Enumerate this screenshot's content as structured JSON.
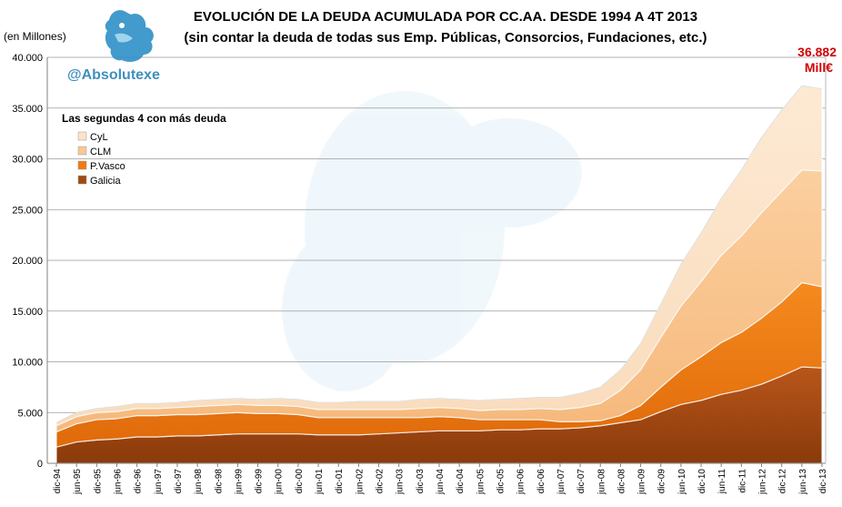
{
  "chart_data": {
    "type": "area",
    "stacked": true,
    "title": "EVOLUCIÓN DE LA DEUDA ACUMULADA POR CC.AA. DESDE 1994 A 4T 2013",
    "subtitle": "(sin contar la deuda de todas sus Emp. Públicas, Consorcios, Fundaciones, etc.)",
    "unit_label": "(en Millones)",
    "handle": "@Absolutexe",
    "legend_title": "Las segundas 4 con más deuda",
    "legend_placement": "top-left",
    "annotation": {
      "value": "36.882",
      "unit": "Mill€"
    },
    "ylim": [
      0,
      40000
    ],
    "y_ticks": [
      "0",
      "5.000",
      "10.000",
      "15.000",
      "20.000",
      "25.000",
      "30.000",
      "35.000",
      "40.000"
    ],
    "grid": true,
    "x_labels": [
      "dic-94",
      "jun-95",
      "dic-95",
      "jun-96",
      "dic-96",
      "jun-97",
      "dic-97",
      "jun-98",
      "dic-98",
      "jun-99",
      "dic-99",
      "jun-00",
      "dic-00",
      "jun-01",
      "dic-01",
      "jun-02",
      "dic-02",
      "jun-03",
      "dic-03",
      "jun-04",
      "dic-04",
      "jun-05",
      "dic-05",
      "jun-06",
      "dic-06",
      "jun-07",
      "dic-07",
      "jun-08",
      "dic-08",
      "jun-09",
      "dic-09",
      "jun-10",
      "dic-10",
      "jun-11",
      "dic-11",
      "jun-12",
      "dic-12",
      "jun-13",
      "dic-13"
    ],
    "series": [
      {
        "name": "Galicia",
        "color": "#a24a12",
        "values": [
          1600,
          2100,
          2300,
          2400,
          2600,
          2600,
          2700,
          2700,
          2800,
          2900,
          2900,
          2900,
          2900,
          2800,
          2800,
          2800,
          2900,
          3000,
          3100,
          3200,
          3200,
          3200,
          3300,
          3300,
          3400,
          3400,
          3500,
          3700,
          4000,
          4300,
          5100,
          5800,
          6200,
          6800,
          7200,
          7800,
          8600,
          9500,
          9400
        ]
      },
      {
        "name": "P.Vasco",
        "color": "#f07a14",
        "values": [
          1500,
          1800,
          2000,
          2000,
          2100,
          2100,
          2100,
          2100,
          2100,
          2100,
          2000,
          2000,
          1900,
          1700,
          1700,
          1700,
          1600,
          1500,
          1400,
          1400,
          1300,
          1100,
          1000,
          1000,
          900,
          700,
          600,
          500,
          700,
          1400,
          2400,
          3400,
          4300,
          5100,
          5700,
          6500,
          7300,
          8300,
          8000
        ]
      },
      {
        "name": "CLM",
        "color": "#f9c795",
        "values": [
          600,
          700,
          700,
          700,
          700,
          700,
          700,
          800,
          800,
          800,
          800,
          800,
          800,
          800,
          800,
          800,
          800,
          800,
          900,
          900,
          900,
          900,
          1000,
          1000,
          1100,
          1200,
          1400,
          1700,
          2500,
          3500,
          4900,
          6300,
          7400,
          8600,
          9500,
          10400,
          10900,
          11100,
          11400
        ]
      },
      {
        "name": "CyL",
        "color": "#fbe3c8",
        "values": [
          300,
          400,
          400,
          500,
          500,
          500,
          500,
          600,
          600,
          600,
          600,
          700,
          700,
          700,
          700,
          800,
          800,
          800,
          900,
          900,
          900,
          1000,
          1000,
          1100,
          1100,
          1200,
          1400,
          1600,
          2000,
          2600,
          3300,
          4100,
          4800,
          5600,
          6500,
          7400,
          8000,
          8300,
          8100
        ]
      }
    ]
  }
}
